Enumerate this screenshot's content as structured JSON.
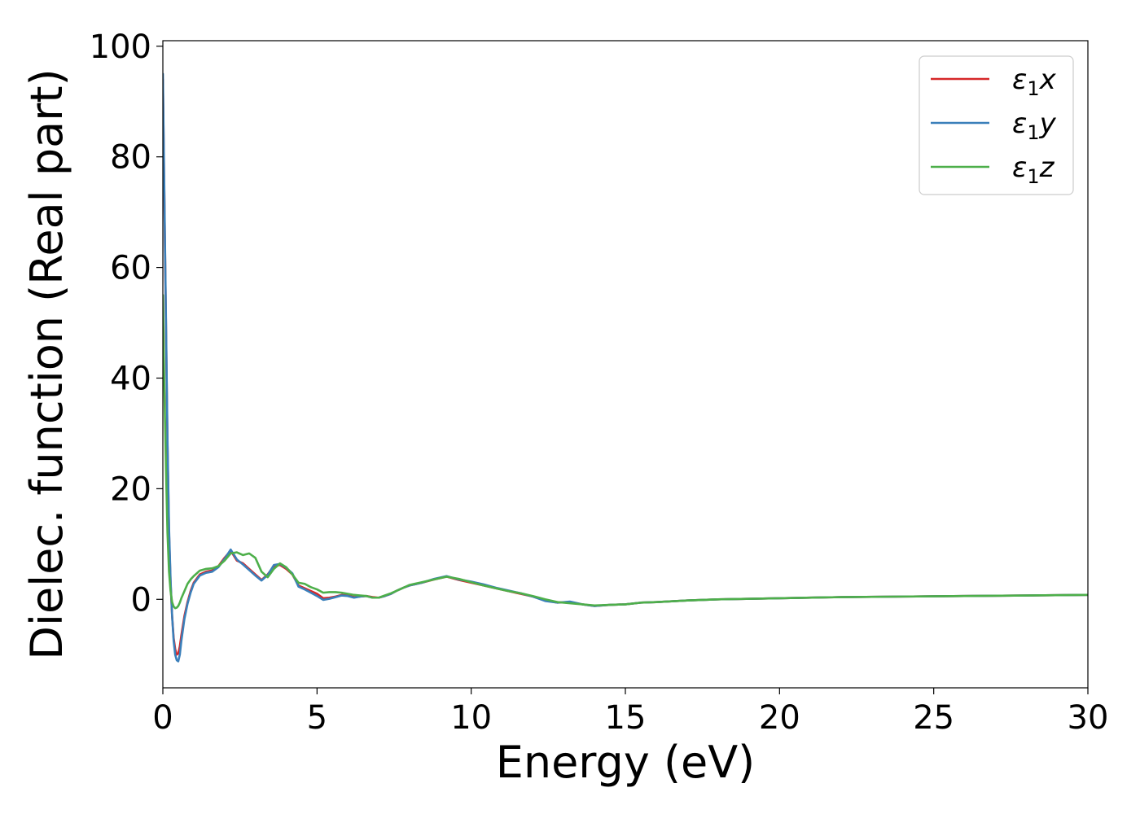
{
  "chart_data": {
    "type": "line",
    "title": "",
    "xlabel": "Energy (eV)",
    "ylabel": "Dielec. function (Real part)",
    "xlim": [
      0,
      30
    ],
    "ylim": [
      -16,
      101
    ],
    "x_ticks": [
      0,
      5,
      10,
      15,
      20,
      25,
      30
    ],
    "y_ticks": [
      0,
      20,
      40,
      60,
      80,
      100
    ],
    "x_tick_labels": [
      "0",
      "5",
      "10",
      "15",
      "20",
      "25",
      "30"
    ],
    "y_tick_labels": [
      "0",
      "20",
      "40",
      "60",
      "80",
      "100"
    ],
    "grid": false,
    "legend_position": "top-right",
    "series": [
      {
        "name": "ε₁x",
        "legend_base": "ε",
        "legend_sub": "1",
        "legend_var": "x",
        "color": "#d62728",
        "x": [
          0.0,
          0.05,
          0.1,
          0.15,
          0.2,
          0.25,
          0.3,
          0.35,
          0.4,
          0.45,
          0.5,
          0.55,
          0.6,
          0.7,
          0.8,
          0.9,
          1.0,
          1.2,
          1.4,
          1.6,
          1.8,
          2.0,
          2.2,
          2.4,
          2.6,
          2.8,
          3.0,
          3.2,
          3.4,
          3.6,
          3.8,
          4.0,
          4.2,
          4.4,
          4.6,
          4.8,
          5.0,
          5.2,
          5.4,
          5.6,
          5.8,
          6.0,
          6.2,
          6.4,
          6.6,
          6.8,
          7.0,
          7.2,
          7.4,
          7.6,
          7.8,
          8.0,
          8.4,
          8.8,
          9.2,
          9.6,
          10.0,
          10.4,
          10.8,
          11.2,
          11.6,
          12.0,
          12.4,
          12.8,
          13.2,
          13.6,
          14.0,
          14.5,
          15.0,
          15.5,
          16.0,
          17.0,
          18.0,
          20.0,
          22.0,
          24.0,
          26.0,
          28.0,
          30.0
        ],
        "values": [
          94,
          72,
          50,
          28,
          12,
          3,
          -3,
          -7,
          -9,
          -10,
          -9.8,
          -8.5,
          -6.5,
          -3,
          -0.5,
          1.5,
          3,
          4.5,
          5,
          5.2,
          6,
          7.5,
          8.8,
          7,
          6.5,
          5.5,
          4.5,
          3.5,
          4.5,
          6,
          6.2,
          5.5,
          4.5,
          2.5,
          2,
          1.5,
          1,
          0.2,
          0.3,
          0.5,
          0.8,
          0.7,
          0.4,
          0.5,
          0.6,
          0.4,
          0.3,
          0.6,
          1.0,
          1.6,
          2.1,
          2.5,
          3.0,
          3.6,
          4.1,
          3.5,
          3.0,
          2.5,
          2.0,
          1.5,
          1.0,
          0.5,
          -0.2,
          -0.6,
          -0.5,
          -0.9,
          -1.2,
          -1.0,
          -0.9,
          -0.6,
          -0.5,
          -0.2,
          0.0,
          0.2,
          0.4,
          0.5,
          0.6,
          0.7,
          0.8
        ]
      },
      {
        "name": "ε₁y",
        "legend_base": "ε",
        "legend_sub": "1",
        "legend_var": "y",
        "color": "#3a7fba",
        "x": [
          0.0,
          0.05,
          0.1,
          0.15,
          0.2,
          0.25,
          0.3,
          0.35,
          0.4,
          0.45,
          0.5,
          0.55,
          0.6,
          0.7,
          0.8,
          0.9,
          1.0,
          1.2,
          1.4,
          1.6,
          1.8,
          2.0,
          2.2,
          2.4,
          2.6,
          2.8,
          3.0,
          3.2,
          3.4,
          3.6,
          3.8,
          4.0,
          4.2,
          4.4,
          4.6,
          4.8,
          5.0,
          5.2,
          5.4,
          5.6,
          5.8,
          6.0,
          6.2,
          6.4,
          6.6,
          6.8,
          7.0,
          7.2,
          7.4,
          7.6,
          7.8,
          8.0,
          8.4,
          8.8,
          9.2,
          9.6,
          10.0,
          10.4,
          10.8,
          11.2,
          11.6,
          12.0,
          12.4,
          12.8,
          13.2,
          13.6,
          14.0,
          14.5,
          15.0,
          15.5,
          16.0,
          17.0,
          18.0,
          20.0,
          22.0,
          24.0,
          26.0,
          28.0,
          30.0
        ],
        "values": [
          95,
          73,
          51,
          29,
          13,
          3.5,
          -3,
          -7.5,
          -10,
          -11,
          -11.2,
          -10,
          -7.5,
          -3.5,
          -0.8,
          1.2,
          2.8,
          4.3,
          4.8,
          5,
          5.8,
          7.3,
          9.0,
          7.2,
          6.3,
          5.3,
          4.3,
          3.4,
          4.4,
          6.2,
          6.4,
          5.7,
          4.7,
          2.3,
          1.8,
          1.2,
          0.6,
          -0.1,
          0.1,
          0.4,
          0.7,
          0.6,
          0.3,
          0.5,
          0.6,
          0.3,
          0.3,
          0.6,
          1.0,
          1.6,
          2.1,
          2.5,
          3.0,
          3.7,
          4.2,
          3.6,
          3.2,
          2.7,
          2.1,
          1.6,
          1.1,
          0.5,
          -0.3,
          -0.6,
          -0.4,
          -0.9,
          -1.2,
          -1.0,
          -0.9,
          -0.6,
          -0.5,
          -0.2,
          0.0,
          0.2,
          0.4,
          0.5,
          0.6,
          0.7,
          0.8
        ]
      },
      {
        "name": "ε₁z",
        "legend_base": "ε",
        "legend_sub": "1",
        "legend_var": "z",
        "color": "#4daf4a",
        "x": [
          0.0,
          0.05,
          0.1,
          0.15,
          0.2,
          0.25,
          0.3,
          0.35,
          0.4,
          0.45,
          0.5,
          0.55,
          0.6,
          0.7,
          0.8,
          0.9,
          1.0,
          1.2,
          1.4,
          1.6,
          1.8,
          2.0,
          2.2,
          2.4,
          2.6,
          2.8,
          3.0,
          3.2,
          3.4,
          3.6,
          3.8,
          4.0,
          4.2,
          4.4,
          4.6,
          4.8,
          5.0,
          5.2,
          5.4,
          5.6,
          5.8,
          6.0,
          6.2,
          6.4,
          6.6,
          6.8,
          7.0,
          7.2,
          7.4,
          7.6,
          7.8,
          8.0,
          8.4,
          8.8,
          9.2,
          9.6,
          10.0,
          10.4,
          10.8,
          11.2,
          11.6,
          12.0,
          12.4,
          12.8,
          13.2,
          13.6,
          14.0,
          14.5,
          15.0,
          15.5,
          16.0,
          17.0,
          18.0,
          20.0,
          22.0,
          24.0,
          26.0,
          28.0,
          30.0
        ],
        "values": [
          55,
          38,
          24,
          12,
          5,
          1.5,
          -0.5,
          -1.3,
          -1.6,
          -1.5,
          -1.2,
          -0.6,
          0.2,
          1.5,
          2.8,
          3.6,
          4.2,
          5.2,
          5.5,
          5.6,
          6,
          7,
          8.3,
          8.5,
          8.0,
          8.3,
          7.5,
          5,
          4,
          5.5,
          6.5,
          5.8,
          4.5,
          3.0,
          2.8,
          2.2,
          1.8,
          1.2,
          1.3,
          1.3,
          1.2,
          1.0,
          0.8,
          0.7,
          0.6,
          0.3,
          0.3,
          0.7,
          1.1,
          1.6,
          2.1,
          2.6,
          3.1,
          3.6,
          4.1,
          3.7,
          3.1,
          2.5,
          2.0,
          1.5,
          1.1,
          0.6,
          0.0,
          -0.5,
          -0.7,
          -0.9,
          -1.1,
          -1.0,
          -0.9,
          -0.6,
          -0.5,
          -0.2,
          0.0,
          0.2,
          0.4,
          0.5,
          0.6,
          0.7,
          0.8
        ]
      }
    ]
  }
}
